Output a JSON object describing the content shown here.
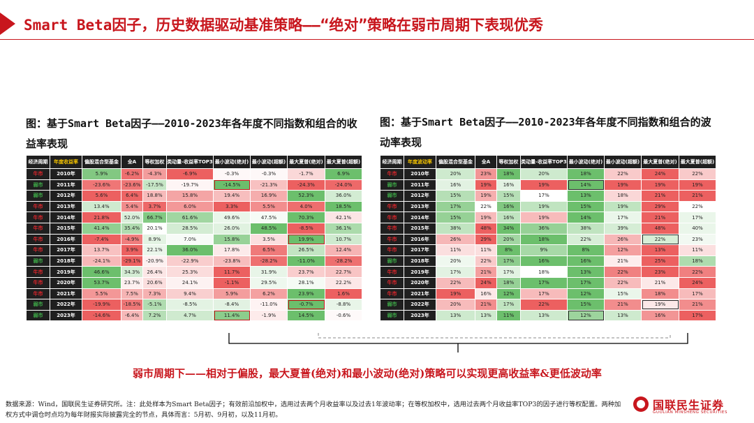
{
  "title": "Smart Beta因子，历史数据驱动基准策略——“绝对”策略在弱市周期下表现优秀",
  "captions": {
    "left": "图：基于Smart Beta因子——2010-2023年各年度不同指数和组合的收益率表现",
    "right": "图：基于Smart Beta因子——2010-2023年各年度不同指数和组合的波动率表现"
  },
  "tables": {
    "headers_left": [
      "经济周期",
      "年度收益率",
      "偏股混合型基金",
      "全A",
      "等权加权",
      "类动量-收益率TOP3",
      "最小波动(绝对)",
      "最小波动(超额)",
      "最大夏普(绝对)",
      "最大夏普(超额)"
    ],
    "headers_right": [
      "经济周期",
      "年度波动率",
      "偏股混合型基金",
      "全A",
      "等权加权",
      "类动量-收益率TOP3",
      "最小波动(绝对)",
      "最小波动(超额)",
      "最大夏普(绝对)",
      "最大夏普(超额)"
    ],
    "cycle_colors": {
      "牛市": "#e8262d",
      "弱市": "#3fae49"
    },
    "rows_left": [
      {
        "cycle": "牛市",
        "year": "2010年",
        "cells": [
          "5.9%",
          "-6.2%",
          "-4.3%",
          "-6.9%",
          "-0.3%",
          "-0.3%",
          "-1.7%",
          "6.9%"
        ]
      },
      {
        "cycle": "弱市",
        "year": "2011年",
        "cells": [
          "-23.6%",
          "-23.6%",
          "-17.5%",
          "-19.7%",
          "-14.5%",
          "-21.3%",
          "-24.3%",
          "-24.0%"
        ]
      },
      {
        "cycle": "弱市",
        "year": "2012年",
        "cells": [
          "5.6%",
          "6.4%",
          "18.8%",
          "15.8%",
          "19.4%",
          "16.9%",
          "52.3%",
          "36.0%"
        ]
      },
      {
        "cycle": "牛市",
        "year": "2013年",
        "cells": [
          "13.4%",
          "5.4%",
          "3.7%",
          "6.0%",
          "3.3%",
          "5.5%",
          "4.0%",
          "18.5%"
        ]
      },
      {
        "cycle": "牛市",
        "year": "2014年",
        "cells": [
          "21.8%",
          "52.0%",
          "66.7%",
          "61.6%",
          "49.6%",
          "47.5%",
          "70.3%",
          "42.1%"
        ]
      },
      {
        "cycle": "牛市",
        "year": "2015年",
        "cells": [
          "41.4%",
          "35.4%",
          "20.1%",
          "28.5%",
          "26.0%",
          "48.5%",
          "-8.5%",
          "36.1%"
        ]
      },
      {
        "cycle": "牛市",
        "year": "2016年",
        "cells": [
          "-7.4%",
          "-4.9%",
          "8.9%",
          "7.0%",
          "15.8%",
          "3.5%",
          "19.9%",
          "10.7%"
        ]
      },
      {
        "cycle": "牛市",
        "year": "2017年",
        "cells": [
          "13.7%",
          "3.9%",
          "22.1%",
          "36.0%",
          "17.8%",
          "6.5%",
          "26.5%",
          "12.4%"
        ]
      },
      {
        "cycle": "弱市",
        "year": "2018年",
        "cells": [
          "-24.1%",
          "-29.1%",
          "-20.9%",
          "-22.9%",
          "-23.8%",
          "-28.2%",
          "-11.0%",
          "-28.2%"
        ]
      },
      {
        "cycle": "牛市",
        "year": "2019年",
        "cells": [
          "46.6%",
          "34.3%",
          "26.4%",
          "25.3%",
          "11.7%",
          "31.9%",
          "23.7%",
          "22.7%"
        ]
      },
      {
        "cycle": "牛市",
        "year": "2020年",
        "cells": [
          "53.7%",
          "23.7%",
          "20.6%",
          "24.1%",
          "-1.1%",
          "29.5%",
          "28.1%",
          "22.2%"
        ]
      },
      {
        "cycle": "牛市",
        "year": "2021年",
        "cells": [
          "5.5%",
          "7.5%",
          "7.3%",
          "9.4%",
          "5.9%",
          "6.2%",
          "23.9%",
          "1.6%"
        ]
      },
      {
        "cycle": "弱市",
        "year": "2022年",
        "cells": [
          "-19.9%",
          "-18.5%",
          "-5.1%",
          "-8.5%",
          "-8.4%",
          "-11.0%",
          "-0.7%",
          "-8.8%"
        ]
      },
      {
        "cycle": "弱市",
        "year": "2023年",
        "cells": [
          "-14.6%",
          "-6.4%",
          "7.2%",
          "4.7%",
          "11.4%",
          "-1.9%",
          "14.5%",
          "-0.6%"
        ]
      }
    ],
    "rows_right": [
      {
        "cycle": "牛市",
        "year": "2010年",
        "cells": [
          "20%",
          "23%",
          "18%",
          "20%",
          "18%",
          "22%",
          "24%",
          "22%"
        ]
      },
      {
        "cycle": "弱市",
        "year": "2011年",
        "cells": [
          "16%",
          "19%",
          "16%",
          "19%",
          "14%",
          "19%",
          "19%",
          "19%"
        ]
      },
      {
        "cycle": "弱市",
        "year": "2012年",
        "cells": [
          "15%",
          "19%",
          "15%",
          "17%",
          "13%",
          "18%",
          "21%",
          "21%"
        ]
      },
      {
        "cycle": "牛市",
        "year": "2013年",
        "cells": [
          "17%",
          "22%",
          "16%",
          "19%",
          "15%",
          "19%",
          "29%",
          "22%"
        ]
      },
      {
        "cycle": "牛市",
        "year": "2014年",
        "cells": [
          "15%",
          "19%",
          "16%",
          "19%",
          "14%",
          "17%",
          "21%",
          "17%"
        ]
      },
      {
        "cycle": "牛市",
        "year": "2015年",
        "cells": [
          "38%",
          "48%",
          "34%",
          "36%",
          "38%",
          "39%",
          "48%",
          "40%"
        ]
      },
      {
        "cycle": "牛市",
        "year": "2016年",
        "cells": [
          "26%",
          "29%",
          "20%",
          "18%",
          "22%",
          "26%",
          "22%",
          "23%"
        ]
      },
      {
        "cycle": "牛市",
        "year": "2017年",
        "cells": [
          "11%",
          "11%",
          "8%",
          "9%",
          "8%",
          "12%",
          "13%",
          "11%"
        ]
      },
      {
        "cycle": "弱市",
        "year": "2018年",
        "cells": [
          "20%",
          "22%",
          "17%",
          "16%",
          "16%",
          "21%",
          "25%",
          "18%"
        ]
      },
      {
        "cycle": "牛市",
        "year": "2019年",
        "cells": [
          "17%",
          "21%",
          "17%",
          "18%",
          "13%",
          "22%",
          "23%",
          "22%"
        ]
      },
      {
        "cycle": "牛市",
        "year": "2020年",
        "cells": [
          "22%",
          "24%",
          "18%",
          "17%",
          "17%",
          "22%",
          "21%",
          "24%"
        ]
      },
      {
        "cycle": "牛市",
        "year": "2021年",
        "cells": [
          "19%",
          "16%",
          "12%",
          "17%",
          "12%",
          "15%",
          "18%",
          "17%"
        ]
      },
      {
        "cycle": "弱市",
        "year": "2022年",
        "cells": [
          "20%",
          "21%",
          "17%",
          "22%",
          "15%",
          "21%",
          "19%",
          "21%"
        ]
      },
      {
        "cycle": "弱市",
        "year": "2023年",
        "cells": [
          "13%",
          "13%",
          "11%",
          "13%",
          "12%",
          "13%",
          "16%",
          "17%"
        ]
      }
    ]
  },
  "conclusion": "弱市周期下——相对于偏股，最大夏普(绝对)和最小波动(绝对)策略可以实现更高收益率&更低波动率",
  "footnote": "数据来源：Wind，国联民生证券研究所。注：此处样本为Smart Beta因子；有效前沿加权中，选用过去两个月收益率以及过去1年波动率；在等权加权中，选用过去两个月收益率TOP3的因子进行等权配置。两种加权方式中调仓时点均为每年财报实际披露完全的节点，具体而言：5月初、9月初，以及11月初。",
  "logo": {
    "name": "国联民生证券",
    "sub": "GUOLIAN MINSHENG SECURITIES"
  },
  "colors": {
    "accent": "#c8161d",
    "header_bg": "#1f1f1f",
    "highlight": "#f5c400"
  }
}
